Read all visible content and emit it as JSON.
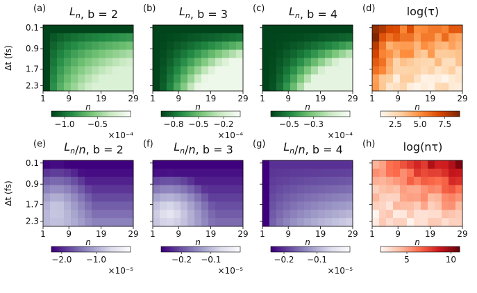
{
  "figure": {
    "y_axis_label": "Δt (fs)",
    "x_axis_label": "n",
    "x_tick_labels": [
      "1",
      "9",
      "19",
      "29"
    ],
    "y_tick_labels": [
      "0.1",
      "0.9",
      "1.7",
      "2.3"
    ]
  },
  "chart_data": [
    {
      "type": "heatmap",
      "panel": "(a)",
      "title": "L_n, b = 2",
      "cmap": "Greens",
      "xlabel": "n",
      "ylabel": "Δt (fs)",
      "grid": "13x8",
      "colorbar": {
        "ticks": [
          "−1.0",
          "−0.5"
        ],
        "exponent": "×10⁻⁴",
        "range": [
          -1.2,
          0
        ]
      },
      "pattern": "edge"
    },
    {
      "type": "heatmap",
      "panel": "(b)",
      "title": "L_n, b = 3",
      "cmap": "Greens",
      "xlabel": "n",
      "ylabel": "",
      "grid": "13x8",
      "colorbar": {
        "ticks": [
          "−0.8",
          "−0.5",
          "−0.2"
        ],
        "exponent": "×10⁻⁴",
        "range": [
          -0.95,
          0
        ]
      },
      "pattern": "corner"
    },
    {
      "type": "heatmap",
      "panel": "(c)",
      "title": "L_n, b = 4",
      "cmap": "Greens",
      "xlabel": "n",
      "ylabel": "",
      "grid": "13x8",
      "colorbar": {
        "ticks": [
          "−0.5",
          "−0.3"
        ],
        "exponent": "×10⁻⁴",
        "range": [
          -0.65,
          0
        ]
      },
      "pattern": "corner2"
    },
    {
      "type": "heatmap",
      "panel": "(d)",
      "title": "log(τ)",
      "cmap": "Oranges",
      "xlabel": "n",
      "ylabel": "",
      "grid": "13x8",
      "colorbar": {
        "ticks": [
          "2.5",
          "5.0",
          "7.5"
        ],
        "exponent": "",
        "range": [
          1,
          9
        ]
      },
      "pattern": "tau"
    },
    {
      "type": "heatmap",
      "panel": "(e)",
      "title": "L_n/n, b = 2",
      "cmap": "Purples",
      "xlabel": "n",
      "ylabel": "Δt (fs)",
      "grid": "13x8",
      "colorbar": {
        "ticks": [
          "−2.0",
          "−1.0"
        ],
        "exponent": "×10⁻⁵",
        "range": [
          -2.3,
          0
        ]
      },
      "pattern": "blob"
    },
    {
      "type": "heatmap",
      "panel": "(f)",
      "title": "L_n/n, b = 3",
      "cmap": "Purples",
      "xlabel": "n",
      "ylabel": "",
      "grid": "13x8",
      "colorbar": {
        "ticks": [
          "−0.2",
          "−0.1"
        ],
        "exponent": "×10⁻⁵",
        "range": [
          -0.27,
          0
        ]
      },
      "pattern": "blob2"
    },
    {
      "type": "heatmap",
      "panel": "(g)",
      "title": "L_n/n, b = 4",
      "cmap": "Purples",
      "xlabel": "n",
      "ylabel": "",
      "grid": "13x8",
      "colorbar": {
        "ticks": [
          "−0.2",
          "−0.1"
        ],
        "exponent": "×10⁻⁵",
        "range": [
          -0.24,
          0
        ]
      },
      "pattern": "edge2"
    },
    {
      "type": "heatmap",
      "panel": "(h)",
      "title": "log(nτ)",
      "cmap": "Reds",
      "xlabel": "n",
      "ylabel": "",
      "grid": "13x8",
      "colorbar": {
        "ticks": [
          "5",
          "10"
        ],
        "exponent": "",
        "range": [
          2,
          11
        ]
      },
      "pattern": "ntau"
    }
  ]
}
